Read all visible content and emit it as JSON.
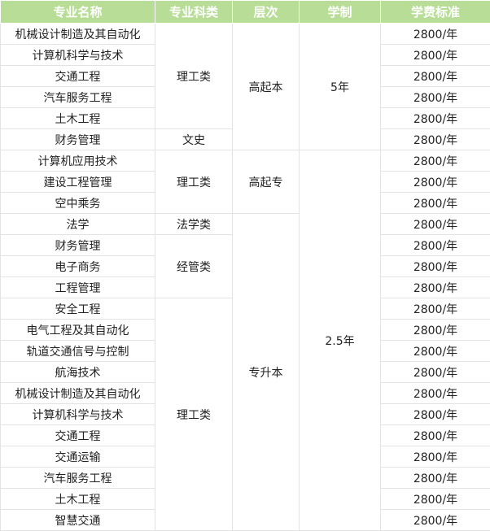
{
  "headers": [
    "专业名称",
    "专业科类",
    "层次",
    "学制",
    "学费标准"
  ],
  "majors": [
    "机械设计制造及其自动化",
    "计算机科学与技术",
    "交通工程",
    "汽车服务工程",
    "土木工程",
    "财务管理",
    "计算机应用技术",
    "建设工程管理",
    "空中乘务",
    "法学",
    "财务管理",
    "电子商务",
    "工程管理",
    "安全工程",
    "电气工程及其自动化",
    "轨道交通信号与控制",
    "航海技术",
    "机械设计制造及其自动化",
    "计算机科学与技术",
    "交通工程",
    "交通运输",
    "汽车服务工程",
    "土木工程",
    "智慧交通"
  ],
  "categories": [
    "理工类",
    "文史",
    "理工类",
    "法学类",
    "经管类",
    "理工类"
  ],
  "levels": [
    "高起本",
    "高起专",
    "专升本"
  ],
  "durations": [
    "5年",
    "2.5年"
  ],
  "fee": "2800/年",
  "colors": {
    "header_bg": "#b8dd97",
    "header_text": "#ffffff",
    "border": "#e3e3e3"
  }
}
